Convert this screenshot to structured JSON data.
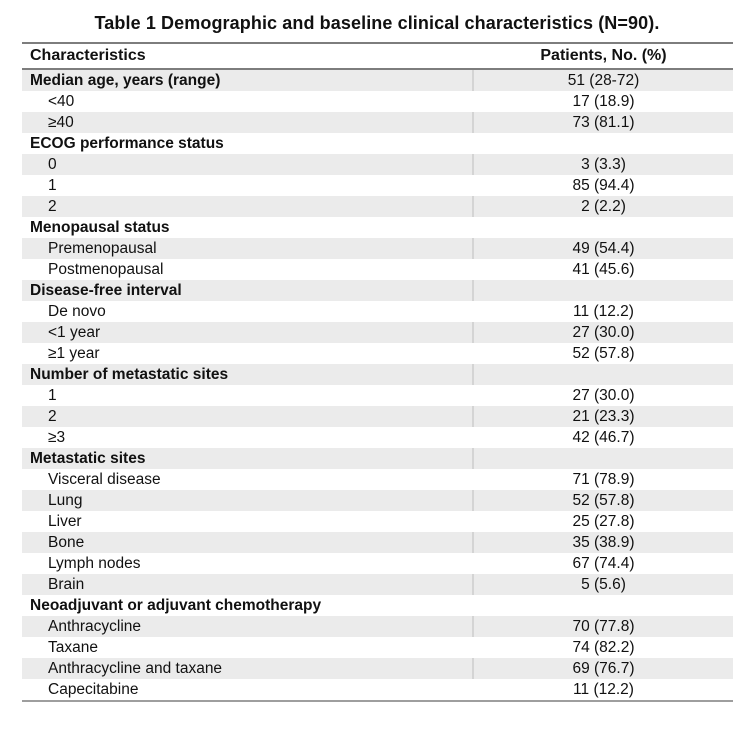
{
  "title": "Table 1 Demographic and baseline clinical characteristics (N=90).",
  "table": {
    "headers": [
      "Characteristics",
      "Patients, No. (%)"
    ],
    "rows": [
      {
        "type": "section",
        "label": "Median age, years (range)",
        "value": "51 (28-72)"
      },
      {
        "type": "item",
        "label": "<40",
        "value": "17 (18.9)"
      },
      {
        "type": "item",
        "label": "≥40",
        "value": "73 (81.1)"
      },
      {
        "type": "section",
        "label": "ECOG performance status",
        "value": ""
      },
      {
        "type": "item",
        "label": "0",
        "value": "3 (3.3)"
      },
      {
        "type": "item",
        "label": "1",
        "value": "85 (94.4)"
      },
      {
        "type": "item",
        "label": "2",
        "value": "2 (2.2)"
      },
      {
        "type": "section",
        "label": "Menopausal status",
        "value": ""
      },
      {
        "type": "item",
        "label": "Premenopausal",
        "value": "49 (54.4)"
      },
      {
        "type": "item",
        "label": "Postmenopausal",
        "value": "41 (45.6)"
      },
      {
        "type": "section",
        "label": "Disease-free interval",
        "value": ""
      },
      {
        "type": "item",
        "label": "De novo",
        "value": "11 (12.2)"
      },
      {
        "type": "item",
        "label": "<1 year",
        "value": "27 (30.0)"
      },
      {
        "type": "item",
        "label": "≥1 year",
        "value": "52 (57.8)"
      },
      {
        "type": "section",
        "label": "Number of metastatic sites",
        "value": ""
      },
      {
        "type": "item",
        "label": "1",
        "value": "27 (30.0)"
      },
      {
        "type": "item",
        "label": "2",
        "value": "21 (23.3)"
      },
      {
        "type": "item",
        "label": "≥3",
        "value": "42 (46.7)"
      },
      {
        "type": "section",
        "label": "Metastatic sites",
        "value": ""
      },
      {
        "type": "item",
        "label": "Visceral disease",
        "value": "71 (78.9)"
      },
      {
        "type": "item",
        "label": "Lung",
        "value": "52 (57.8)"
      },
      {
        "type": "item",
        "label": "Liver",
        "value": "25 (27.8)"
      },
      {
        "type": "item",
        "label": "Bone",
        "value": "35 (38.9)"
      },
      {
        "type": "item",
        "label": "Lymph nodes",
        "value": "67 (74.4)"
      },
      {
        "type": "item",
        "label": "Brain",
        "value": "5 (5.6)"
      },
      {
        "type": "section",
        "label": "Neoadjuvant or adjuvant chemotherapy",
        "value": ""
      },
      {
        "type": "item",
        "label": "Anthracycline",
        "value": "70 (77.8)"
      },
      {
        "type": "item",
        "label": "Taxane",
        "value": "74 (82.2)"
      },
      {
        "type": "item",
        "label": "Anthracycline and taxane",
        "value": "69 (76.7)"
      },
      {
        "type": "item",
        "label": "Capecitabine",
        "value": "11 (12.2)"
      }
    ]
  },
  "colors": {
    "background": "#ffffff",
    "text": "#111111",
    "row-shade": "#ebebeb",
    "col-divider": "#d4d4d4",
    "rule-dark": "#7d7d7d",
    "rule-bottom": "#9e9e9e"
  }
}
